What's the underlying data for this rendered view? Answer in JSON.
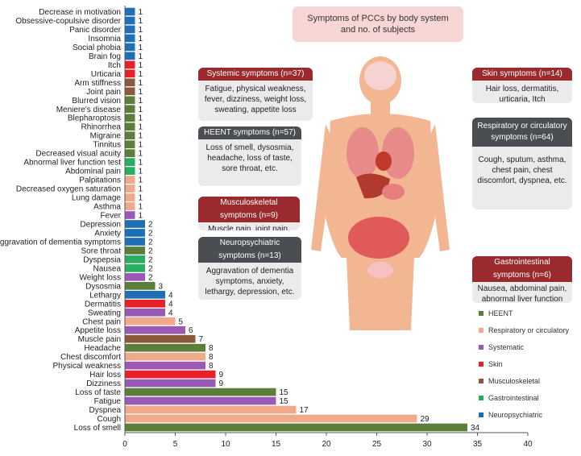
{
  "title": {
    "line1": "Symptoms of PCCs by body system",
    "line2": "and no. of subjects"
  },
  "annotations": {
    "systemic": {
      "head": "Systemic symptoms (n=37)",
      "body": "Fatigue, physical weakness, fever, dizziness, weight loss, sweating, appetite loss"
    },
    "heent": {
      "head": "HEENT symptoms (n=57)",
      "body": "Loss of smell, dysosmia, headache, loss of taste, sore throat, etc."
    },
    "musculoskeletal": {
      "head": "Musculoskeletal symptoms (n=9)",
      "body": "Muscle pain, joint pain, arm stiffness"
    },
    "neuropsychiatric": {
      "head": "Neuropsychiatric symptoms (n=13)",
      "body": "Aggravation of dementia symptoms, anxiety, lethargy, depression, etc."
    },
    "skin": {
      "head": "Skin symptoms (n=14)",
      "body": "Hair loss, dermatitis, urticaria, Itch"
    },
    "respiratory": {
      "head": "Respiratory or circulatory symptoms (n=64)",
      "body": "Cough, sputum, asthma, chest pain, chest discomfort, dyspnea, etc."
    },
    "gastrointestinal": {
      "head": "Gastrointestinal symptoms (n=6)",
      "body": "Nausea, abdominal pain, abnormal liver function test, dyspepsia"
    }
  },
  "colors": {
    "HEENT": "#5b7f3a",
    "Respiratory or circulatory": "#f0a98a",
    "Systematic": "#9b59b6",
    "Skin": "#e8202a",
    "Musculoskeletal": "#8b5a3c",
    "Gastrointestinal": "#27ae60",
    "Neuropsychiatric": "#1f6fb5"
  },
  "chart_data": {
    "type": "bar",
    "orientation": "horizontal",
    "xlim": [
      0,
      40
    ],
    "xticks": [
      0,
      5,
      10,
      15,
      20,
      25,
      30,
      35,
      40
    ],
    "legend": [
      "HEENT",
      "Respiratory or circulatory",
      "Systematic",
      "Skin",
      "Musculoskeletal",
      "Gastrointestinal",
      "Neuropsychiatric"
    ],
    "legend_position": "bottom-right",
    "bars": [
      {
        "label": "Decrease in motivation",
        "value": 1,
        "group": "Neuropsychiatric"
      },
      {
        "label": "Obsessive-copulsive disorder",
        "value": 1,
        "group": "Neuropsychiatric"
      },
      {
        "label": "Panic disorder",
        "value": 1,
        "group": "Neuropsychiatric"
      },
      {
        "label": "Insomnia",
        "value": 1,
        "group": "Neuropsychiatric"
      },
      {
        "label": "Social phobia",
        "value": 1,
        "group": "Neuropsychiatric"
      },
      {
        "label": "Brain fog",
        "value": 1,
        "group": "Neuropsychiatric"
      },
      {
        "label": "Itch",
        "value": 1,
        "group": "Skin"
      },
      {
        "label": "Urticaria",
        "value": 1,
        "group": "Skin"
      },
      {
        "label": "Arm stiffness",
        "value": 1,
        "group": "Musculoskeletal"
      },
      {
        "label": "Joint pain",
        "value": 1,
        "group": "Musculoskeletal"
      },
      {
        "label": "Blurred vision",
        "value": 1,
        "group": "HEENT"
      },
      {
        "label": "Meniere's disease",
        "value": 1,
        "group": "HEENT"
      },
      {
        "label": "Blepharoptosis",
        "value": 1,
        "group": "HEENT"
      },
      {
        "label": "Rhinorrhea",
        "value": 1,
        "group": "HEENT"
      },
      {
        "label": "Migraine",
        "value": 1,
        "group": "HEENT"
      },
      {
        "label": "Tinnitus",
        "value": 1,
        "group": "HEENT"
      },
      {
        "label": "Decreased visual acuity",
        "value": 1,
        "group": "HEENT"
      },
      {
        "label": "Abnormal liver function test",
        "value": 1,
        "group": "Gastrointestinal"
      },
      {
        "label": "Abdominal pain",
        "value": 1,
        "group": "Gastrointestinal"
      },
      {
        "label": "Palpitations",
        "value": 1,
        "group": "Respiratory or circulatory"
      },
      {
        "label": "Decreased oxygen saturation",
        "value": 1,
        "group": "Respiratory or circulatory"
      },
      {
        "label": "Lung damage",
        "value": 1,
        "group": "Respiratory or circulatory"
      },
      {
        "label": "Asthma",
        "value": 1,
        "group": "Respiratory or circulatory"
      },
      {
        "label": "Fever",
        "value": 1,
        "group": "Systematic"
      },
      {
        "label": "Depression",
        "value": 2,
        "group": "Neuropsychiatric"
      },
      {
        "label": "Anxiety",
        "value": 2,
        "group": "Neuropsychiatric"
      },
      {
        "label": "Aggravation of dementia symptoms",
        "value": 2,
        "group": "Neuropsychiatric"
      },
      {
        "label": "Sore throat",
        "value": 2,
        "group": "HEENT"
      },
      {
        "label": "Dyspepsia",
        "value": 2,
        "group": "Gastrointestinal"
      },
      {
        "label": "Nausea",
        "value": 2,
        "group": "Gastrointestinal"
      },
      {
        "label": "Weight loss",
        "value": 2,
        "group": "Systematic"
      },
      {
        "label": "Dysosmia",
        "value": 3,
        "group": "HEENT"
      },
      {
        "label": "Lethargy",
        "value": 4,
        "group": "Neuropsychiatric"
      },
      {
        "label": "Dermatitis",
        "value": 4,
        "group": "Skin"
      },
      {
        "label": "Sweating",
        "value": 4,
        "group": "Systematic"
      },
      {
        "label": "Chest pain",
        "value": 5,
        "group": "Respiratory or circulatory"
      },
      {
        "label": "Appetite loss",
        "value": 6,
        "group": "Systematic"
      },
      {
        "label": "Muscle pain",
        "value": 7,
        "group": "Musculoskeletal"
      },
      {
        "label": "Headache",
        "value": 8,
        "group": "HEENT"
      },
      {
        "label": "Chest discomfort",
        "value": 8,
        "group": "Respiratory or circulatory"
      },
      {
        "label": "Physical weakness",
        "value": 8,
        "group": "Systematic"
      },
      {
        "label": "Hair loss",
        "value": 9,
        "group": "Skin"
      },
      {
        "label": "Dizziness",
        "value": 9,
        "group": "Systematic"
      },
      {
        "label": "Loss of taste",
        "value": 15,
        "group": "HEENT"
      },
      {
        "label": "Fatigue",
        "value": 15,
        "group": "Systematic"
      },
      {
        "label": "Dyspnea",
        "value": 17,
        "group": "Respiratory or circulatory"
      },
      {
        "label": "Cough",
        "value": 29,
        "group": "Respiratory or circulatory"
      },
      {
        "label": "Loss of smell",
        "value": 34,
        "group": "HEENT"
      }
    ]
  }
}
